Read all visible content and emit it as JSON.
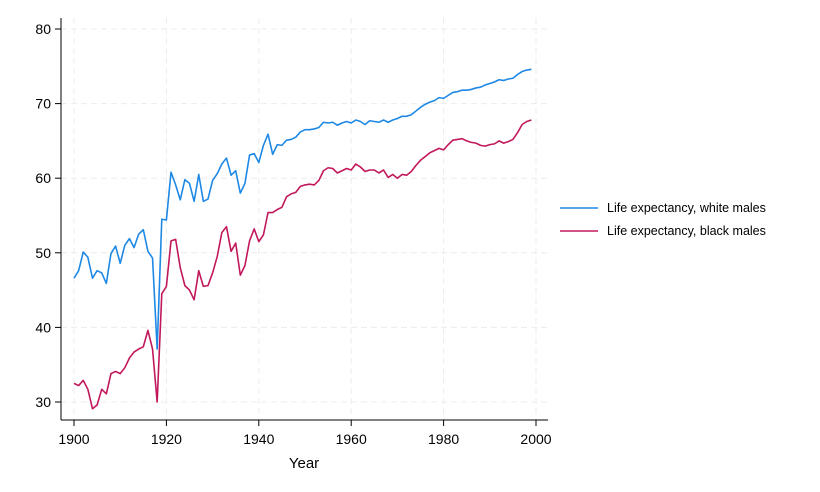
{
  "chart_data": {
    "type": "line",
    "title": "",
    "xlabel": "Year",
    "ylabel": "",
    "xlim": [
      1900,
      2000
    ],
    "ylim": [
      28,
      81
    ],
    "xticks": [
      "1900",
      "1920",
      "1940",
      "1960",
      "1980",
      "2000"
    ],
    "yticks": [
      "30",
      "40",
      "50",
      "60",
      "70",
      "80"
    ],
    "grid": true,
    "legend_position": "right",
    "x": [
      1900,
      1901,
      1902,
      1903,
      1904,
      1905,
      1906,
      1907,
      1908,
      1909,
      1910,
      1911,
      1912,
      1913,
      1914,
      1915,
      1916,
      1917,
      1918,
      1919,
      1920,
      1921,
      1922,
      1923,
      1924,
      1925,
      1926,
      1927,
      1928,
      1929,
      1930,
      1931,
      1932,
      1933,
      1934,
      1935,
      1936,
      1937,
      1938,
      1939,
      1940,
      1941,
      1942,
      1943,
      1944,
      1945,
      1946,
      1947,
      1948,
      1949,
      1950,
      1951,
      1952,
      1953,
      1954,
      1955,
      1956,
      1957,
      1958,
      1959,
      1960,
      1961,
      1962,
      1963,
      1964,
      1965,
      1966,
      1967,
      1968,
      1969,
      1970,
      1971,
      1972,
      1973,
      1974,
      1975,
      1976,
      1977,
      1978,
      1979,
      1980,
      1981,
      1982,
      1983,
      1984,
      1985,
      1986,
      1987,
      1988,
      1989,
      1990,
      1991,
      1992,
      1993,
      1994,
      1995,
      1996,
      1997,
      1998,
      1999
    ],
    "series": [
      {
        "name": "Life expectancy, white males",
        "color": "#1e88e5",
        "values": [
          46.6,
          47.6,
          50.1,
          49.4,
          46.6,
          47.6,
          47.3,
          45.9,
          49.9,
          50.9,
          48.6,
          51.0,
          51.9,
          50.7,
          52.5,
          53.1,
          50.2,
          49.3,
          37.1,
          54.5,
          54.4,
          60.8,
          59.1,
          57.1,
          59.8,
          59.3,
          56.9,
          60.5,
          56.9,
          57.2,
          59.7,
          60.6,
          61.9,
          62.7,
          60.4,
          61.0,
          58.0,
          59.3,
          63.1,
          63.3,
          62.1,
          64.4,
          65.9,
          63.2,
          64.5,
          64.4,
          65.1,
          65.2,
          65.5,
          66.2,
          66.5,
          66.5,
          66.6,
          66.8,
          67.5,
          67.4,
          67.5,
          67.1,
          67.4,
          67.6,
          67.4,
          67.8,
          67.6,
          67.2,
          67.7,
          67.6,
          67.5,
          67.8,
          67.5,
          67.8,
          68.0,
          68.3,
          68.3,
          68.5,
          69.0,
          69.5,
          69.9,
          70.2,
          70.4,
          70.8,
          70.7,
          71.1,
          71.5,
          71.6,
          71.8,
          71.8,
          71.9,
          72.1,
          72.2,
          72.5,
          72.7,
          72.9,
          73.2,
          73.1,
          73.3,
          73.4,
          73.9,
          74.3,
          74.5,
          74.6
        ]
      },
      {
        "name": "Life expectancy, black males",
        "color": "#c2185b",
        "values": [
          32.5,
          32.2,
          32.9,
          31.7,
          29.1,
          29.6,
          31.7,
          31.1,
          33.8,
          34.1,
          33.8,
          34.6,
          35.9,
          36.7,
          37.1,
          37.4,
          39.6,
          37.1,
          30.0,
          44.5,
          45.5,
          51.6,
          51.8,
          48.0,
          45.6,
          45.0,
          43.7,
          47.6,
          45.5,
          45.6,
          47.3,
          49.5,
          52.7,
          53.5,
          50.2,
          51.3,
          47.0,
          48.3,
          51.6,
          53.2,
          51.5,
          52.4,
          55.4,
          55.4,
          55.8,
          56.1,
          57.5,
          57.9,
          58.1,
          58.9,
          59.1,
          59.2,
          59.1,
          59.7,
          61.0,
          61.4,
          61.3,
          60.7,
          61.0,
          61.3,
          61.1,
          61.9,
          61.5,
          60.9,
          61.1,
          61.1,
          60.7,
          61.1,
          60.1,
          60.5,
          60.0,
          60.5,
          60.4,
          60.9,
          61.7,
          62.4,
          62.9,
          63.4,
          63.7,
          64.0,
          63.8,
          64.5,
          65.1,
          65.2,
          65.3,
          65.0,
          64.8,
          64.7,
          64.4,
          64.3,
          64.5,
          64.6,
          65.0,
          64.7,
          64.9,
          65.2,
          66.1,
          67.2,
          67.6,
          67.8
        ]
      }
    ]
  }
}
